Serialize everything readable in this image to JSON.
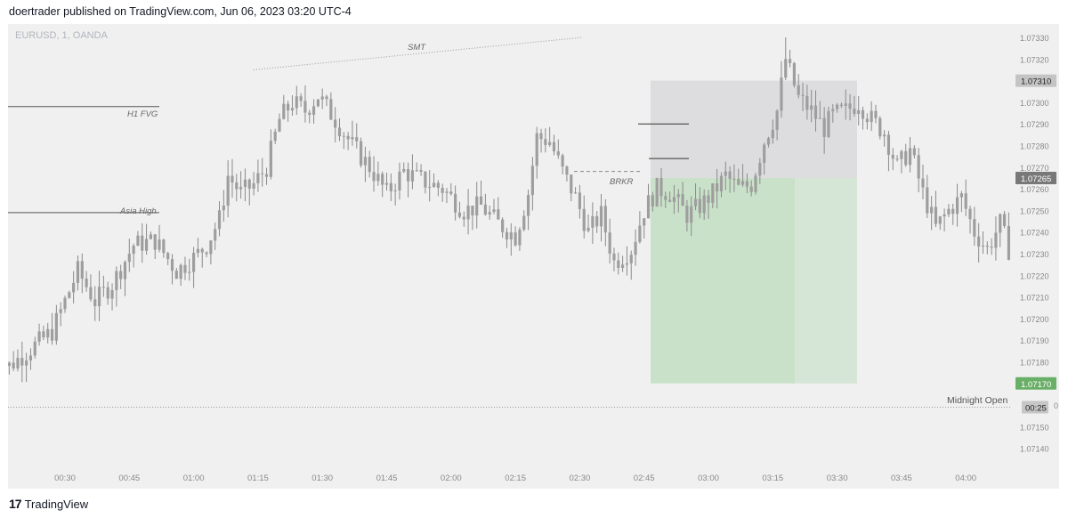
{
  "header": {
    "published_text": "doertrader published on TradingView.com, Jun 06, 2023 03:20 UTC-4"
  },
  "footer": {
    "logo_mark": "17",
    "brand": "TradingView"
  },
  "chart_data": {
    "type": "candlestick",
    "symbol_label": "EURUSD, 1, OANDA",
    "y_ticks": [
      "1.07330",
      "1.07320",
      "1.07310",
      "1.07300",
      "1.07290",
      "1.07280",
      "1.07270",
      "1.07265",
      "1.07260",
      "1.07250",
      "1.07240",
      "1.07230",
      "1.07220",
      "1.07210",
      "1.07200",
      "1.07190",
      "1.07180",
      "1.07170",
      "1.07160",
      "1.07150",
      "1.07140"
    ],
    "x_ticks": [
      "00:30",
      "00:45",
      "01:00",
      "01:15",
      "01:30",
      "01:45",
      "02:00",
      "02:15",
      "02:30",
      "02:45",
      "03:00",
      "03:15",
      "03:30",
      "03:45",
      "04:00"
    ],
    "ylim": [
      1.07135,
      1.07335
    ],
    "price_badges": [
      {
        "value": "1.07310",
        "kind": "gray"
      },
      {
        "value": "1.07265",
        "kind": "dark"
      },
      {
        "value": "1.07170",
        "kind": "green"
      },
      {
        "value": "00:25",
        "kind": "timer"
      }
    ],
    "annotations": {
      "smt": "SMT",
      "h1_fvg": "H1 FVG",
      "asia_high": "Asia High",
      "brkr": "BRKR",
      "midnight_open": "Midnight Open"
    },
    "levels": {
      "h1_fvg": 1.07298,
      "asia_high": 1.07249,
      "midnight_open": 1.07159,
      "smt_start": 1.07315,
      "smt_end": 1.0733,
      "brkr": 1.07268,
      "stop_top": 1.0731,
      "entry": 1.07265,
      "target": 1.0717
    },
    "colors": {
      "background": "#f0f0f0",
      "candle": "#9e9e9e",
      "wick": "#8a8a8a",
      "stop_zone": "#dddde0",
      "target_zone": "#c9e1c9",
      "target_zone_light": "#d6e6d6",
      "badge_gray": "#c4c4c4",
      "badge_dark": "#787878",
      "badge_green": "#6aaf68"
    }
  }
}
